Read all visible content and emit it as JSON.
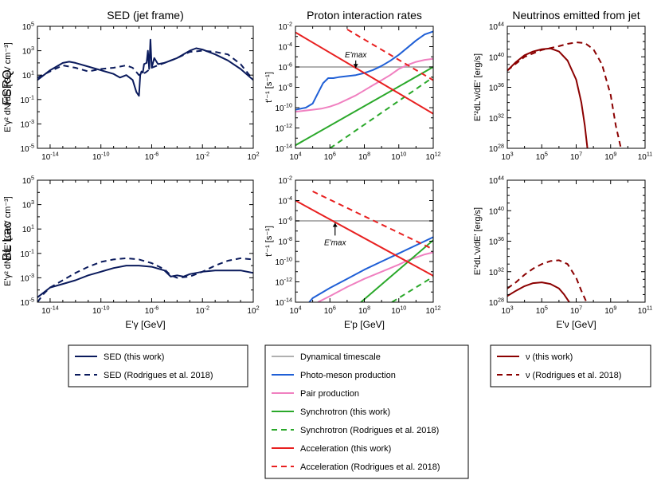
{
  "column_titles": [
    "SED (jet frame)",
    "Proton interaction rates",
    "Neutrinos emitted from jet"
  ],
  "row_labels": [
    "FSRQ",
    "BL Lac"
  ],
  "colors": {
    "sed": "#0a1a5c",
    "dyn": "#b0b0b0",
    "photomeson": "#1f5fd6",
    "pair": "#f080c0",
    "sync": "#2aa82a",
    "accel": "#e82020",
    "nu": "#8b0000"
  },
  "legends": {
    "sed": [
      {
        "label": "SED (this work)",
        "color": "#0a1a5c",
        "dash": false
      },
      {
        "label": "SED (Rodrigues et al. 2018)",
        "color": "#0a1a5c",
        "dash": true
      }
    ],
    "rates": [
      {
        "label": "Dynamical timescale",
        "color": "#b0b0b0",
        "dash": false
      },
      {
        "label": "Photo-meson production",
        "color": "#1f5fd6",
        "dash": false
      },
      {
        "label": "Pair production",
        "color": "#f080c0",
        "dash": false
      },
      {
        "label": "Synchrotron (this work)",
        "color": "#2aa82a",
        "dash": false
      },
      {
        "label": "Synchrotron (Rodrigues et al. 2018)",
        "color": "#2aa82a",
        "dash": true
      },
      {
        "label": "Acceleration (this work)",
        "color": "#e82020",
        "dash": false
      },
      {
        "label": "Acceleration (Rodrigues et al. 2018)",
        "color": "#e82020",
        "dash": true
      }
    ],
    "nu": [
      {
        "label": "ν (this work)",
        "color": "#8b0000",
        "dash": false
      },
      {
        "label": "ν (Rodrigues et al. 2018)",
        "color": "#8b0000",
        "dash": true
      }
    ]
  },
  "chart_data": [
    {
      "id": "fsrq-sed",
      "type": "line",
      "row": 0,
      "col": 0,
      "title": "SED (jet frame)",
      "ylabel": "E'γ² dN/dE' [GeV cm⁻³]",
      "xlabel": "",
      "xscale": "log",
      "yscale": "log",
      "xlim": [
        -15,
        2
      ],
      "ylim": [
        -5,
        5
      ],
      "xticks": [
        -14,
        -10,
        -6,
        -2,
        2
      ],
      "yticks": [
        -5,
        -3,
        -1,
        1,
        3,
        5
      ],
      "series": [
        {
          "name": "SED (this work)",
          "color": "sed",
          "dash": false,
          "x": [
            -15,
            -14.5,
            -14,
            -13,
            -12.5,
            -12,
            -11,
            -10,
            -9,
            -8.5,
            -8,
            -7.5,
            -7.2,
            -7.0,
            -6.9,
            -6.8,
            -6.7,
            -6.6,
            -6.4,
            -6.3,
            -6.2,
            -6.1,
            -6.0,
            -5.8,
            -5.5,
            -5,
            -4,
            -3,
            -2.5,
            -2,
            -1,
            0,
            1,
            2
          ],
          "y": [
            0.6,
            1.0,
            1.4,
            2.0,
            2.1,
            2.0,
            1.7,
            1.4,
            1.1,
            0.8,
            1.0,
            0.6,
            -0.4,
            -0.7,
            1.0,
            1.3,
            1.2,
            1.9,
            2.0,
            3.0,
            1.5,
            3.9,
            1.6,
            2.4,
            1.9,
            2.0,
            2.4,
            3.0,
            3.2,
            3.1,
            2.7,
            2.2,
            1.5,
            0.6
          ]
        },
        {
          "name": "SED (Rodrigues et al. 2018)",
          "color": "sed",
          "dash": true,
          "x": [
            -15,
            -14,
            -13,
            -12,
            -11,
            -10,
            -9,
            -8,
            -7.5,
            -7,
            -6.5,
            -6,
            -5,
            -4,
            -3,
            -2,
            -1,
            0,
            1,
            2
          ],
          "y": [
            0.8,
            1.3,
            1.8,
            1.6,
            1.3,
            1.5,
            1.6,
            1.8,
            1.6,
            1.0,
            1.2,
            1.6,
            2.0,
            2.4,
            2.9,
            3.0,
            2.9,
            2.7,
            1.9,
            0.6
          ]
        }
      ]
    },
    {
      "id": "fsrq-rates",
      "type": "line",
      "row": 0,
      "col": 1,
      "title": "Proton interaction rates",
      "ylabel": "t'⁻¹ [s⁻¹]",
      "xlabel": "",
      "xscale": "log",
      "yscale": "log",
      "xlim": [
        4,
        12
      ],
      "ylim": [
        -14,
        -2
      ],
      "xticks": [
        4,
        6,
        8,
        10,
        12
      ],
      "yticks": [
        -14,
        -12,
        -10,
        -8,
        -6,
        -4,
        -2
      ],
      "annotation": {
        "text": "E'max",
        "x": 7.5,
        "y": -6.1,
        "label_y": -5.2,
        "arrow_up": false
      },
      "series": [
        {
          "name": "Dynamical timescale",
          "color": "dyn",
          "dash": false,
          "x": [
            4,
            12
          ],
          "y": [
            -6,
            -6
          ]
        },
        {
          "name": "Photo-meson production",
          "color": "photomeson",
          "dash": false,
          "x": [
            4,
            4.6,
            5.0,
            5.3,
            5.6,
            5.9,
            6.2,
            6.5,
            7,
            7.5,
            8,
            8.5,
            9,
            9.5,
            10,
            10.5,
            11,
            11.5,
            12
          ],
          "y": [
            -10.2,
            -10.0,
            -9.6,
            -8.6,
            -7.6,
            -7.1,
            -7.1,
            -7.0,
            -6.9,
            -6.8,
            -6.6,
            -6.3,
            -5.9,
            -5.4,
            -4.8,
            -4.1,
            -3.4,
            -2.8,
            -2.5
          ]
        },
        {
          "name": "Pair production",
          "color": "pair",
          "dash": false,
          "x": [
            4,
            5,
            5.5,
            6,
            6.5,
            7,
            7.5,
            8,
            8.5,
            9,
            9.5,
            10,
            10.5,
            11,
            11.5,
            12
          ],
          "y": [
            -10.4,
            -10.2,
            -10.1,
            -9.9,
            -9.6,
            -9.2,
            -8.8,
            -8.3,
            -7.8,
            -7.3,
            -6.8,
            -6.2,
            -5.8,
            -5.5,
            -5.3,
            -5.2
          ]
        },
        {
          "name": "Synchrotron (this work)",
          "color": "sync",
          "dash": false,
          "x": [
            4,
            12
          ],
          "y": [
            -13.7,
            -6.0
          ]
        },
        {
          "name": "Synchrotron (Rodrigues et al. 2018)",
          "color": "sync",
          "dash": true,
          "x": [
            6,
            12
          ],
          "y": [
            -14.0,
            -7.0
          ]
        },
        {
          "name": "Acceleration (this work)",
          "color": "accel",
          "dash": false,
          "x": [
            4,
            12
          ],
          "y": [
            -2.6,
            -10.6
          ]
        },
        {
          "name": "Acceleration (Rodrigues et al. 2018)",
          "color": "accel",
          "dash": true,
          "x": [
            7,
            12
          ],
          "y": [
            -2.3,
            -7.3
          ]
        }
      ]
    },
    {
      "id": "fsrq-nu",
      "type": "line",
      "row": 0,
      "col": 2,
      "title": "Neutrinos emitted from jet",
      "ylabel": "E'²dL'ν/dE' [erg/s]",
      "xlabel": "",
      "xscale": "log",
      "yscale": "log",
      "xlim": [
        3,
        11
      ],
      "ylim": [
        28,
        44
      ],
      "xticks": [
        3,
        5,
        7,
        9,
        11
      ],
      "yticks": [
        28,
        32,
        36,
        40,
        44
      ],
      "series": [
        {
          "name": "ν (this work)",
          "color": "nu",
          "dash": false,
          "x": [
            3,
            3.5,
            4,
            4.5,
            5,
            5.5,
            6,
            6.5,
            7,
            7.3,
            7.5,
            7.65
          ],
          "y": [
            38.2,
            39.3,
            40.2,
            40.7,
            41.0,
            41.1,
            40.7,
            39.5,
            37.0,
            34.0,
            31.0,
            28.0
          ]
        },
        {
          "name": "ν (Rodrigues et al. 2018)",
          "color": "nu",
          "dash": true,
          "x": [
            3,
            4,
            5,
            6,
            6.5,
            7,
            7.5,
            8,
            8.5,
            9,
            9.3,
            9.6
          ],
          "y": [
            38.2,
            40.0,
            40.9,
            41.4,
            41.7,
            41.9,
            41.8,
            41.0,
            39.0,
            35.0,
            31.0,
            28.0
          ]
        }
      ]
    },
    {
      "id": "bllac-sed",
      "type": "line",
      "row": 1,
      "col": 0,
      "title": "",
      "ylabel": "E'γ² dN/dE' [GeV cm⁻³]",
      "xlabel": "E'γ [GeV]",
      "xscale": "log",
      "yscale": "log",
      "xlim": [
        -15,
        2
      ],
      "ylim": [
        -5,
        5
      ],
      "xticks": [
        -14,
        -10,
        -6,
        -2,
        2
      ],
      "yticks": [
        -5,
        -3,
        -1,
        1,
        3,
        5
      ],
      "series": [
        {
          "name": "SED (this work)",
          "color": "sed",
          "dash": false,
          "x": [
            -15,
            -14.5,
            -14,
            -13,
            -12,
            -11,
            -10,
            -9,
            -8,
            -7,
            -6,
            -5,
            -4.5,
            -4,
            -3.5,
            -3,
            -2,
            -1,
            0,
            1,
            2
          ],
          "y": [
            -4.6,
            -4.2,
            -3.8,
            -3.5,
            -3.2,
            -2.8,
            -2.5,
            -2.2,
            -2.0,
            -2.0,
            -2.1,
            -2.4,
            -2.9,
            -2.8,
            -2.9,
            -2.7,
            -2.5,
            -2.4,
            -2.4,
            -2.4,
            -2.6
          ]
        },
        {
          "name": "SED (Rodrigues et al. 2018)",
          "color": "sed",
          "dash": true,
          "x": [
            -15,
            -14.5,
            -14,
            -13,
            -12,
            -11,
            -10,
            -9,
            -8,
            -7,
            -6,
            -5,
            -4.5,
            -4,
            -3,
            -2,
            -1,
            0,
            1,
            2
          ],
          "y": [
            -5.0,
            -4.3,
            -3.8,
            -3.2,
            -2.6,
            -2.1,
            -1.7,
            -1.5,
            -1.4,
            -1.5,
            -1.8,
            -2.3,
            -2.8,
            -3.0,
            -2.9,
            -2.5,
            -2.0,
            -1.6,
            -1.4,
            -1.5
          ]
        }
      ]
    },
    {
      "id": "bllac-rates",
      "type": "line",
      "row": 1,
      "col": 1,
      "title": "",
      "ylabel": "t'⁻¹ [s⁻¹]",
      "xlabel": "E'p [GeV]",
      "xscale": "log",
      "yscale": "log",
      "xlim": [
        4,
        12
      ],
      "ylim": [
        -14,
        -2
      ],
      "xticks": [
        4,
        6,
        8,
        10,
        12
      ],
      "yticks": [
        -14,
        -12,
        -10,
        -8,
        -6,
        -4,
        -2
      ],
      "annotation": {
        "text": "E'max",
        "x": 6.3,
        "y": -6.2,
        "label_y": -7.6,
        "arrow_up": true
      },
      "series": [
        {
          "name": "Dynamical timescale",
          "color": "dyn",
          "dash": false,
          "x": [
            4,
            12
          ],
          "y": [
            -6,
            -6
          ]
        },
        {
          "name": "Photo-meson production",
          "color": "photomeson",
          "dash": false,
          "x": [
            4.8,
            5,
            6,
            7,
            8,
            9,
            10,
            11,
            12
          ],
          "y": [
            -14.0,
            -13.6,
            -12.6,
            -11.7,
            -10.8,
            -10.0,
            -9.2,
            -8.4,
            -7.6
          ]
        },
        {
          "name": "Pair production",
          "color": "pair",
          "dash": false,
          "x": [
            5.3,
            6,
            7,
            8,
            9,
            10,
            10.5,
            11,
            11.5,
            12
          ],
          "y": [
            -14.0,
            -13.4,
            -12.5,
            -11.7,
            -11.0,
            -10.3,
            -9.9,
            -9.6,
            -9.3,
            -9.1
          ]
        },
        {
          "name": "Synchrotron (this work)",
          "color": "sync",
          "dash": false,
          "x": [
            7.8,
            12
          ],
          "y": [
            -14.0,
            -7.9
          ]
        },
        {
          "name": "Synchrotron (Rodrigues et al. 2018)",
          "color": "sync",
          "dash": true,
          "x": [
            9.6,
            12
          ],
          "y": [
            -14.0,
            -11.5
          ]
        },
        {
          "name": "Acceleration (this work)",
          "color": "accel",
          "dash": false,
          "x": [
            4,
            12
          ],
          "y": [
            -4.0,
            -11.4
          ]
        },
        {
          "name": "Acceleration (Rodrigues et al. 2018)",
          "color": "accel",
          "dash": true,
          "x": [
            5,
            12
          ],
          "y": [
            -3.1,
            -8.8
          ]
        }
      ]
    },
    {
      "id": "bllac-nu",
      "type": "line",
      "row": 1,
      "col": 2,
      "title": "",
      "ylabel": "E'²dL'ν/dE' [erg/s]",
      "xlabel": "E'ν [GeV]",
      "xscale": "log",
      "yscale": "log",
      "xlim": [
        3,
        11
      ],
      "ylim": [
        28,
        44
      ],
      "xticks": [
        3,
        5,
        7,
        9,
        11
      ],
      "yticks": [
        28,
        32,
        36,
        40,
        44
      ],
      "series": [
        {
          "name": "ν (this work)",
          "color": "nu",
          "dash": false,
          "x": [
            3,
            3.5,
            4,
            4.5,
            5,
            5.5,
            6,
            6.3,
            6.6
          ],
          "y": [
            28.8,
            29.5,
            30.1,
            30.5,
            30.6,
            30.4,
            29.8,
            29.0,
            28.0
          ]
        },
        {
          "name": "ν (Rodrigues et al. 2018)",
          "color": "nu",
          "dash": true,
          "x": [
            3,
            3.5,
            4,
            4.5,
            5,
            5.5,
            6,
            6.5,
            7,
            7.3,
            7.6
          ],
          "y": [
            29.8,
            30.6,
            31.6,
            32.4,
            33.0,
            33.4,
            33.5,
            33.0,
            31.2,
            29.5,
            28.0
          ]
        }
      ]
    }
  ]
}
